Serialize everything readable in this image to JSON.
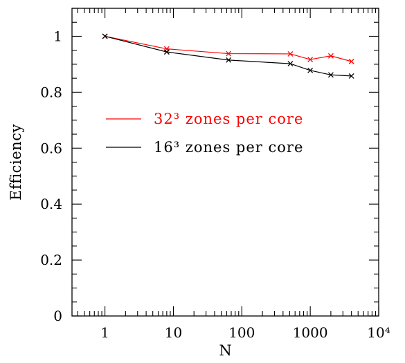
{
  "chart_data": {
    "type": "line",
    "title": "",
    "xlabel": "N",
    "ylabel": "Efficiency",
    "x_scale": "log",
    "xlim": [
      0.33,
      10000
    ],
    "ylim": [
      0,
      1.1
    ],
    "x_ticks": [
      {
        "value": 1,
        "label": "1"
      },
      {
        "value": 10,
        "label": "10"
      },
      {
        "value": 100,
        "label": "100"
      },
      {
        "value": 1000,
        "label": "1000"
      },
      {
        "value": 10000,
        "label": "10⁴"
      }
    ],
    "y_ticks": [
      {
        "value": 0,
        "label": "0"
      },
      {
        "value": 0.2,
        "label": "0.2"
      },
      {
        "value": 0.4,
        "label": "0.4"
      },
      {
        "value": 0.6,
        "label": "0.6"
      },
      {
        "value": 0.8,
        "label": "0.8"
      },
      {
        "value": 1,
        "label": "1"
      }
    ],
    "grid": false,
    "legend_position": "upper-middle",
    "series": [
      {
        "name": "32³ zones per core",
        "color": "#ff0000",
        "marker": "x",
        "x": [
          1,
          8,
          64,
          512,
          1000,
          2000,
          4000
        ],
        "values": [
          1.0,
          0.955,
          0.938,
          0.937,
          0.917,
          0.93,
          0.91
        ]
      },
      {
        "name": "16³ zones per core",
        "color": "#000000",
        "marker": "x",
        "x": [
          1,
          8,
          64,
          512,
          1000,
          2000,
          4000
        ],
        "values": [
          1.0,
          0.944,
          0.915,
          0.902,
          0.878,
          0.862,
          0.858
        ]
      }
    ]
  }
}
